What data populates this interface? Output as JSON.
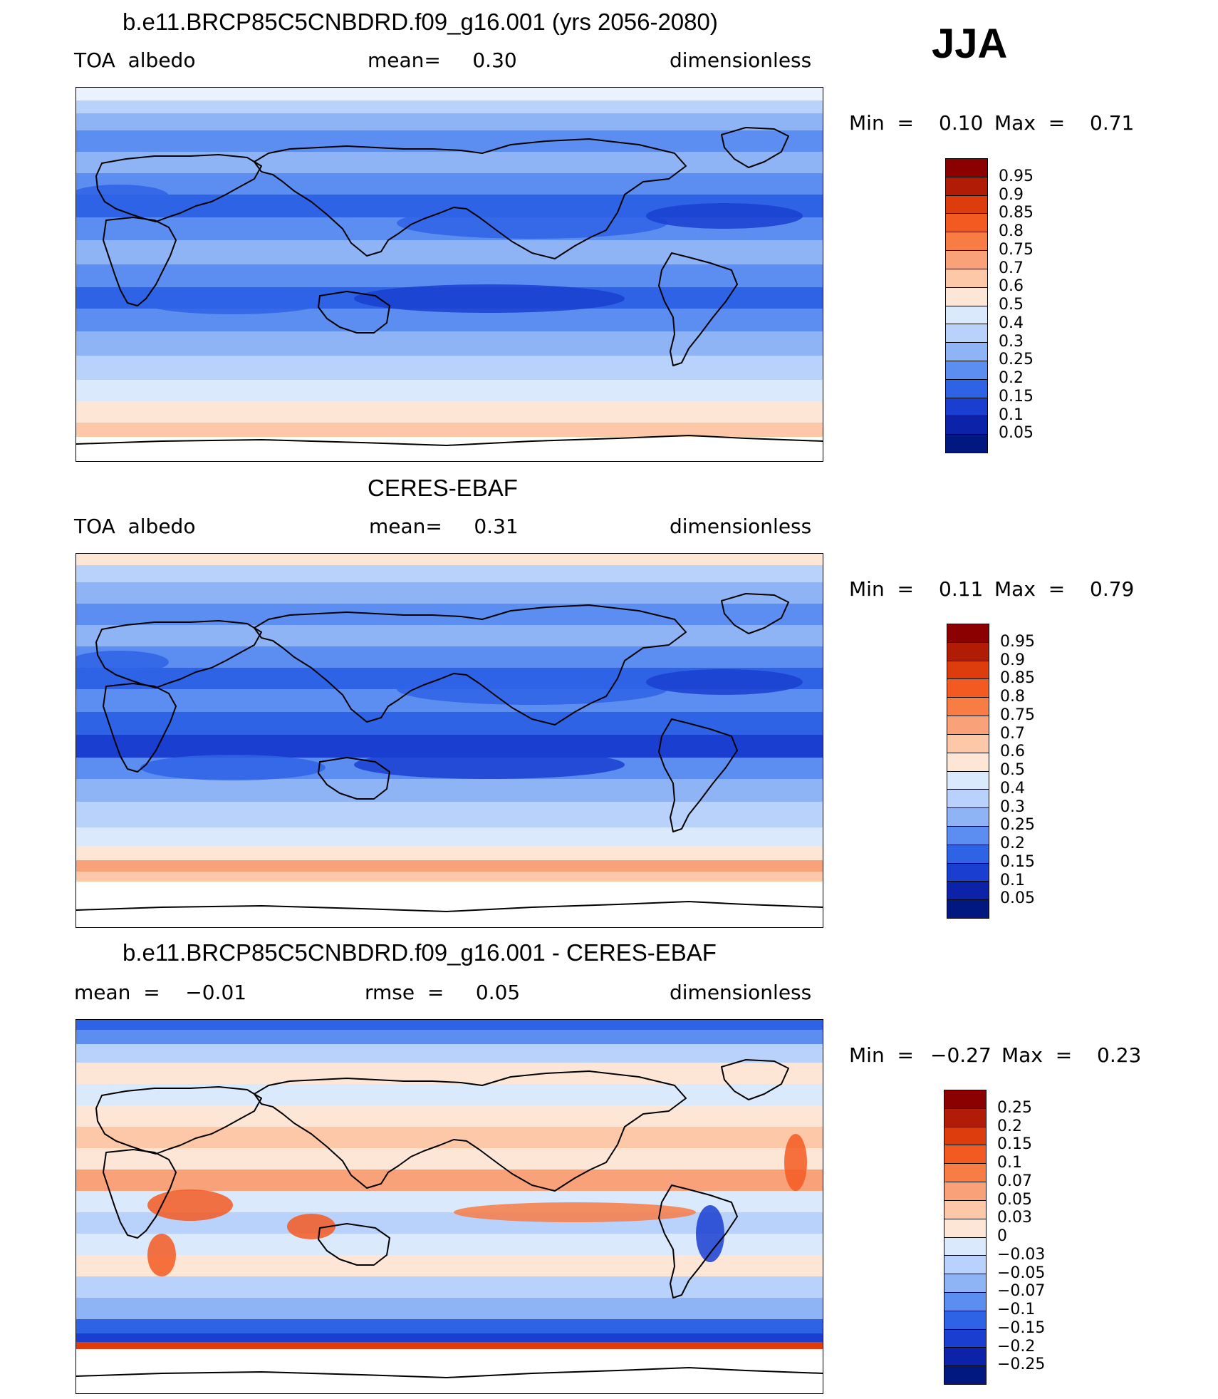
{
  "season": "JJA",
  "panels": [
    {
      "title": "b.e11.BRCP85C5CNBDRD.f09_g16.001 (yrs 2056-2080)",
      "left": "TOA  albedo",
      "center": "mean=     0.30",
      "right": "dimensionless",
      "min_label": "Min  =",
      "min_value": "0.10",
      "max_label": "Max  =",
      "max_value": "0.71",
      "colorbar_levels": [
        "0.95",
        "0.9",
        "0.85",
        "0.8",
        "0.75",
        "0.7",
        "0.6",
        "0.5",
        "0.4",
        "0.3",
        "0.25",
        "0.2",
        "0.15",
        "0.1",
        "0.05"
      ],
      "colorbar_colors": [
        "#8b0000",
        "#b11c06",
        "#dd3c0c",
        "#f35a22",
        "#f77d45",
        "#f9a27a",
        "#fcc8a8",
        "#fde6d6",
        "#dbe9fc",
        "#b9d2fb",
        "#8fb4f6",
        "#5c8df0",
        "#2f63e6",
        "#1a3fd0",
        "#0c22a8",
        "#001880"
      ],
      "field": "abs"
    },
    {
      "title": "CERES-EBAF",
      "left": "TOA  albedo",
      "center": "mean=     0.31",
      "right": "dimensionless",
      "min_label": "Min  =",
      "min_value": "0.11",
      "max_label": "Max  =",
      "max_value": "0.79",
      "colorbar_levels": [
        "0.95",
        "0.9",
        "0.85",
        "0.8",
        "0.75",
        "0.7",
        "0.6",
        "0.5",
        "0.4",
        "0.3",
        "0.25",
        "0.2",
        "0.15",
        "0.1",
        "0.05"
      ],
      "colorbar_colors": [
        "#8b0000",
        "#b11c06",
        "#dd3c0c",
        "#f35a22",
        "#f77d45",
        "#f9a27a",
        "#fcc8a8",
        "#fde6d6",
        "#dbe9fc",
        "#b9d2fb",
        "#8fb4f6",
        "#5c8df0",
        "#2f63e6",
        "#1a3fd0",
        "#0c22a8",
        "#001880"
      ],
      "field": "abs"
    },
    {
      "title": "b.e11.BRCP85C5CNBDRD.f09_g16.001 - CERES-EBAF",
      "left": "mean  =    −0.01",
      "center": "rmse  =     0.05",
      "right": "dimensionless",
      "min_label": "Min  =",
      "min_value": "−0.27",
      "max_label": "Max  =",
      "max_value": "0.23",
      "colorbar_levels": [
        "0.25",
        "0.2",
        "0.15",
        "0.1",
        "0.07",
        "0.05",
        "0.03",
        "0",
        "−0.03",
        "−0.05",
        "−0.07",
        "−0.1",
        "−0.15",
        "−0.2",
        "−0.25"
      ],
      "colorbar_colors": [
        "#8b0000",
        "#b11c06",
        "#dd3c0c",
        "#f35a22",
        "#f77d45",
        "#f9a27a",
        "#fcc8a8",
        "#fde6d6",
        "#dbe9fc",
        "#b9d2fb",
        "#8fb4f6",
        "#5c8df0",
        "#2f63e6",
        "#1a3fd0",
        "#0c22a8",
        "#001880"
      ],
      "field": "diff"
    }
  ]
}
